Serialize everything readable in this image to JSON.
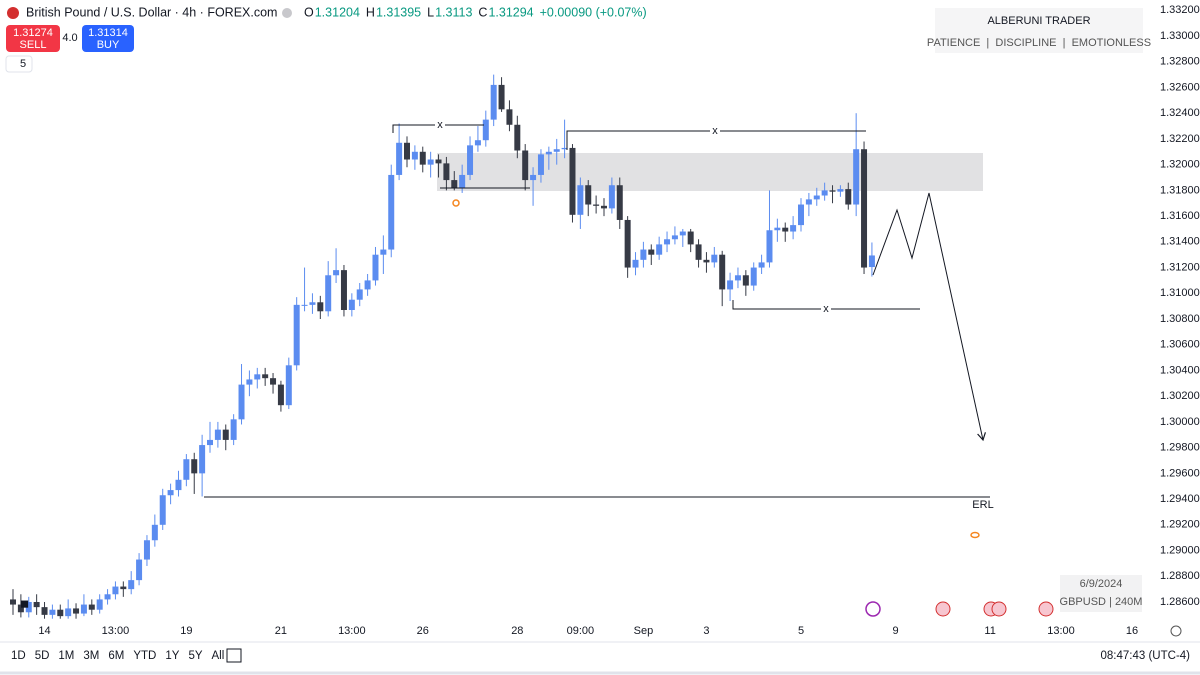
{
  "header": {
    "symbol": "British Pound / U.S. Dollar · 4h · FOREX.com",
    "ohlc_labels": [
      "O",
      "H",
      "L",
      "C"
    ],
    "change": "+0.00090 (+0.07%)",
    "sell_price": "1.31274",
    "sell": "SELL",
    "spread": "4.0",
    "buy_price": "1.31314",
    "buy": "BUY",
    "indicators": "5"
  },
  "branding": {
    "title": "ALBERUNI TRADER",
    "tagline": "PATIENCE  |  DISCIPLINE  |  EMOTIONLESS"
  },
  "info": {
    "date": "6/9/2024",
    "symbol": "GBPUSD | 240M"
  },
  "toolbar": {
    "ranges": [
      "1D",
      "5D",
      "1M",
      "3M",
      "6M",
      "YTD",
      "1Y",
      "5Y",
      "All"
    ],
    "clock": "08:47:43 (UTC-4)"
  },
  "annotations": {
    "marks": [
      "x",
      "x",
      "x"
    ],
    "erl": "ERL"
  },
  "chart_data": {
    "type": "candlestick",
    "up_color": "#5b8cf0",
    "down_color": "#363a45",
    "grid": false,
    "ylim": [
      1.2846,
      1.3328
    ],
    "yticks": [
      {
        "value": 1.286,
        "label": "1.28600"
      },
      {
        "value": 1.288,
        "label": "1.28800"
      },
      {
        "value": 1.29,
        "label": "1.29000"
      },
      {
        "value": 1.292,
        "label": "1.29200"
      },
      {
        "value": 1.294,
        "label": "1.29400"
      },
      {
        "value": 1.296,
        "label": "1.29600"
      },
      {
        "value": 1.298,
        "label": "1.29800"
      },
      {
        "value": 1.3,
        "label": "1.30000"
      },
      {
        "value": 1.302,
        "label": "1.30200"
      },
      {
        "value": 1.304,
        "label": "1.30400"
      },
      {
        "value": 1.306,
        "label": "1.30600"
      },
      {
        "value": 1.308,
        "label": "1.30800"
      },
      {
        "value": 1.31,
        "label": "1.31000"
      },
      {
        "value": 1.312,
        "label": "1.31200"
      },
      {
        "value": 1.314,
        "label": "1.31400"
      },
      {
        "value": 1.316,
        "label": "1.31600"
      },
      {
        "value": 1.318,
        "label": "1.31800"
      },
      {
        "value": 1.32,
        "label": "1.32000"
      },
      {
        "value": 1.322,
        "label": "1.32200"
      },
      {
        "value": 1.324,
        "label": "1.32400"
      },
      {
        "value": 1.326,
        "label": "1.32600"
      },
      {
        "value": 1.328,
        "label": "1.32800"
      },
      {
        "value": 1.33,
        "label": "1.33000"
      },
      {
        "value": 1.332,
        "label": "1.33200"
      }
    ],
    "categories": [
      null,
      null,
      null,
      null,
      "14",
      null,
      null,
      null,
      null,
      null,
      null,
      null,
      null,
      "13:00",
      null,
      null,
      null,
      null,
      null,
      null,
      null,
      null,
      "19",
      null,
      null,
      null,
      null,
      null,
      null,
      null,
      null,
      null,
      null,
      null,
      "21",
      null,
      null,
      null,
      null,
      null,
      null,
      null,
      null,
      "13:00",
      null,
      null,
      null,
      null,
      null,
      null,
      null,
      null,
      "26",
      null,
      null,
      null,
      null,
      null,
      null,
      null,
      null,
      null,
      null,
      null,
      "28",
      null,
      null,
      null,
      null,
      null,
      null,
      null,
      "09:00",
      null,
      null,
      null,
      null,
      null,
      null,
      null,
      "Sep",
      null,
      null,
      null,
      null,
      null,
      null,
      null,
      "3",
      null,
      null,
      null,
      null,
      null,
      null,
      null,
      null,
      null,
      null,
      null,
      "5",
      null,
      null,
      null,
      null,
      null,
      null,
      null,
      null,
      null,
      null,
      null,
      "9",
      null,
      null,
      null,
      null,
      null,
      null,
      null,
      null,
      null,
      null,
      null,
      "11",
      null,
      null,
      null,
      null,
      null,
      null,
      null,
      null,
      "13:00",
      null,
      null,
      null,
      null,
      null,
      null,
      null,
      null,
      "16",
      null,
      null
    ],
    "ohlc": [
      [
        1.2862,
        1.287,
        1.285,
        1.2858
      ],
      [
        1.2858,
        1.2866,
        1.2848,
        1.2852
      ],
      [
        1.2852,
        1.2864,
        1.2848,
        1.286
      ],
      [
        1.286,
        1.2866,
        1.285,
        1.2856
      ],
      [
        1.2856,
        1.286,
        1.2847,
        1.285
      ],
      [
        1.285,
        1.2858,
        1.2847,
        1.2854
      ],
      [
        1.2854,
        1.2858,
        1.2847,
        1.2849
      ],
      [
        1.2849,
        1.2862,
        1.2847,
        1.2855
      ],
      [
        1.2855,
        1.2859,
        1.2847,
        1.2851
      ],
      [
        1.2851,
        1.2866,
        1.2849,
        1.2858
      ],
      [
        1.2858,
        1.2862,
        1.285,
        1.2854
      ],
      [
        1.2854,
        1.2866,
        1.2851,
        1.2862
      ],
      [
        1.2862,
        1.287,
        1.2858,
        1.2866
      ],
      [
        1.2866,
        1.2876,
        1.2862,
        1.2872
      ],
      [
        1.2872,
        1.2876,
        1.2864,
        1.287
      ],
      [
        1.287,
        1.2884,
        1.2866,
        1.2877
      ],
      [
        1.2877,
        1.2898,
        1.2873,
        1.2893
      ],
      [
        1.2893,
        1.2912,
        1.2888,
        1.2908
      ],
      [
        1.2908,
        1.2928,
        1.2903,
        1.292
      ],
      [
        1.292,
        1.2948,
        1.2916,
        1.2943
      ],
      [
        1.2943,
        1.2952,
        1.2936,
        1.2947
      ],
      [
        1.2947,
        1.2962,
        1.2942,
        1.2955
      ],
      [
        1.2955,
        1.2975,
        1.295,
        1.2971
      ],
      [
        1.2971,
        1.2976,
        1.2944,
        1.296
      ],
      [
        1.296,
        1.299,
        1.2942,
        1.2982
      ],
      [
        1.2982,
        1.3,
        1.2976,
        1.2986
      ],
      [
        1.2986,
        1.3,
        1.298,
        1.2994
      ],
      [
        1.2994,
        1.2998,
        1.2978,
        1.2986
      ],
      [
        1.2986,
        1.3006,
        1.2982,
        1.3002
      ],
      [
        1.3002,
        1.3045,
        1.2998,
        1.3029
      ],
      [
        1.3029,
        1.304,
        1.302,
        1.3033
      ],
      [
        1.3033,
        1.3042,
        1.3026,
        1.3037
      ],
      [
        1.3037,
        1.3042,
        1.3028,
        1.3034
      ],
      [
        1.3034,
        1.3038,
        1.3022,
        1.3029
      ],
      [
        1.3029,
        1.3032,
        1.3008,
        1.3013
      ],
      [
        1.3013,
        1.305,
        1.301,
        1.3044
      ],
      [
        1.3044,
        1.3097,
        1.304,
        1.3091
      ],
      [
        1.3091,
        1.312,
        1.3086,
        1.3091
      ],
      [
        1.3091,
        1.31,
        1.3084,
        1.3093
      ],
      [
        1.3093,
        1.3098,
        1.308,
        1.3086
      ],
      [
        1.3086,
        1.3125,
        1.3082,
        1.3114
      ],
      [
        1.3114,
        1.3135,
        1.3108,
        1.3118
      ],
      [
        1.3118,
        1.3122,
        1.3082,
        1.3087
      ],
      [
        1.3087,
        1.31,
        1.3082,
        1.3095
      ],
      [
        1.3095,
        1.3108,
        1.309,
        1.3103
      ],
      [
        1.3103,
        1.3115,
        1.3098,
        1.311
      ],
      [
        1.311,
        1.3136,
        1.3106,
        1.313
      ],
      [
        1.313,
        1.3145,
        1.3115,
        1.3134
      ],
      [
        1.3134,
        1.32,
        1.3128,
        1.3192
      ],
      [
        1.3192,
        1.3232,
        1.3188,
        1.3217
      ],
      [
        1.3217,
        1.3222,
        1.3198,
        1.3204
      ],
      [
        1.3204,
        1.3215,
        1.3196,
        1.321
      ],
      [
        1.321,
        1.3214,
        1.3194,
        1.32
      ],
      [
        1.32,
        1.321,
        1.319,
        1.3204
      ],
      [
        1.3204,
        1.3208,
        1.319,
        1.3201
      ],
      [
        1.3201,
        1.3206,
        1.318,
        1.3188
      ],
      [
        1.3188,
        1.3195,
        1.318,
        1.3182
      ],
      [
        1.3182,
        1.32,
        1.3178,
        1.3192
      ],
      [
        1.3192,
        1.3222,
        1.3188,
        1.3215
      ],
      [
        1.3215,
        1.323,
        1.321,
        1.3219
      ],
      [
        1.3219,
        1.3242,
        1.3214,
        1.3235
      ],
      [
        1.3235,
        1.327,
        1.323,
        1.3262
      ],
      [
        1.3262,
        1.3268,
        1.3241,
        1.3243
      ],
      [
        1.3243,
        1.325,
        1.3226,
        1.3231
      ],
      [
        1.3231,
        1.3238,
        1.3205,
        1.3211
      ],
      [
        1.3211,
        1.3216,
        1.318,
        1.3188
      ],
      [
        1.3188,
        1.3198,
        1.3168,
        1.3192
      ],
      [
        1.3192,
        1.3212,
        1.3186,
        1.3208
      ],
      [
        1.3208,
        1.3214,
        1.3196,
        1.321
      ],
      [
        1.321,
        1.322,
        1.32,
        1.3212
      ],
      [
        1.3212,
        1.3235,
        1.3205,
        1.3213
      ],
      [
        1.3213,
        1.3216,
        1.3155,
        1.3161
      ],
      [
        1.3161,
        1.319,
        1.315,
        1.3184
      ],
      [
        1.3184,
        1.3188,
        1.316,
        1.3169
      ],
      [
        1.3169,
        1.3176,
        1.3162,
        1.3168
      ],
      [
        1.3168,
        1.3174,
        1.316,
        1.3166
      ],
      [
        1.3166,
        1.319,
        1.3162,
        1.3184
      ],
      [
        1.3184,
        1.319,
        1.315,
        1.3157
      ],
      [
        1.3157,
        1.316,
        1.3112,
        1.312
      ],
      [
        1.312,
        1.3132,
        1.3114,
        1.3126
      ],
      [
        1.3126,
        1.314,
        1.312,
        1.3134
      ],
      [
        1.3134,
        1.3138,
        1.3122,
        1.313
      ],
      [
        1.313,
        1.3144,
        1.3126,
        1.3138
      ],
      [
        1.3138,
        1.3148,
        1.3132,
        1.3142
      ],
      [
        1.3142,
        1.3152,
        1.3138,
        1.3145
      ],
      [
        1.3145,
        1.315,
        1.3136,
        1.3148
      ],
      [
        1.3148,
        1.315,
        1.3132,
        1.3138
      ],
      [
        1.3138,
        1.3142,
        1.312,
        1.3126
      ],
      [
        1.3126,
        1.3132,
        1.3116,
        1.3124
      ],
      [
        1.3124,
        1.3136,
        1.312,
        1.313
      ],
      [
        1.313,
        1.3133,
        1.309,
        1.3103
      ],
      [
        1.3103,
        1.3116,
        1.3094,
        1.311
      ],
      [
        1.311,
        1.312,
        1.3104,
        1.3114
      ],
      [
        1.3114,
        1.3118,
        1.3098,
        1.3106
      ],
      [
        1.3106,
        1.3124,
        1.3102,
        1.312
      ],
      [
        1.312,
        1.313,
        1.3115,
        1.3124
      ],
      [
        1.3124,
        1.318,
        1.312,
        1.3149
      ],
      [
        1.3149,
        1.3158,
        1.314,
        1.3151
      ],
      [
        1.3151,
        1.3155,
        1.314,
        1.3148
      ],
      [
        1.3148,
        1.316,
        1.3142,
        1.3153
      ],
      [
        1.3153,
        1.3174,
        1.3148,
        1.3169
      ],
      [
        1.3169,
        1.3178,
        1.316,
        1.3173
      ],
      [
        1.3173,
        1.3182,
        1.3168,
        1.3176
      ],
      [
        1.3176,
        1.3186,
        1.3172,
        1.318
      ],
      [
        1.318,
        1.3184,
        1.317,
        1.3179
      ],
      [
        1.3179,
        1.3184,
        1.3175,
        1.3181
      ],
      [
        1.3181,
        1.3186,
        1.3165,
        1.3169
      ],
      [
        1.3169,
        1.324,
        1.316,
        1.3212
      ],
      [
        1.3212,
        1.3218,
        1.3115,
        1.312
      ],
      [
        1.31204,
        1.31395,
        1.3113,
        1.31294
      ],
      null,
      null,
      null,
      null,
      null,
      null,
      null,
      null,
      null,
      null,
      null,
      null,
      null,
      null,
      null,
      null,
      null,
      null,
      null,
      null,
      null,
      null,
      null,
      null,
      null,
      null,
      null,
      null,
      null,
      null,
      null,
      null,
      null,
      null,
      null
    ]
  }
}
